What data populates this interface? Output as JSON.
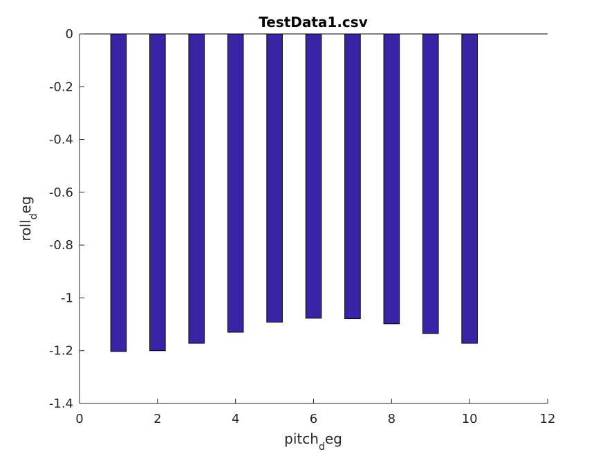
{
  "chart_data": {
    "type": "bar",
    "title": "TestData1.csv",
    "xlabel": {
      "base": "pitch",
      "sub": "d",
      "rest": "eg"
    },
    "ylabel": {
      "base": "roll",
      "sub": "d",
      "rest": "eg"
    },
    "x": [
      1,
      2,
      3,
      4,
      5,
      6,
      7,
      8,
      9,
      10
    ],
    "values": [
      -1.203,
      -1.2,
      -1.172,
      -1.13,
      -1.092,
      -1.077,
      -1.079,
      -1.098,
      -1.135,
      -1.172
    ],
    "xlim": [
      0,
      12
    ],
    "ylim": [
      -1.4,
      0
    ],
    "xticks": [
      0,
      2,
      4,
      6,
      8,
      10,
      12
    ],
    "yticks": [
      0,
      -0.2,
      -0.4,
      -0.6,
      -0.8,
      -1,
      -1.2,
      -1.4
    ],
    "xtick_labels": [
      "0",
      "2",
      "4",
      "6",
      "8",
      "10",
      "12"
    ],
    "ytick_labels": [
      "0",
      "-0.2",
      "-0.4",
      "-0.6",
      "-0.8",
      "-1",
      "-1.2",
      "-1.4"
    ],
    "bar_color": "#3a24a6",
    "bar_edge_color": "#000000",
    "grid": false,
    "legend": "none"
  }
}
